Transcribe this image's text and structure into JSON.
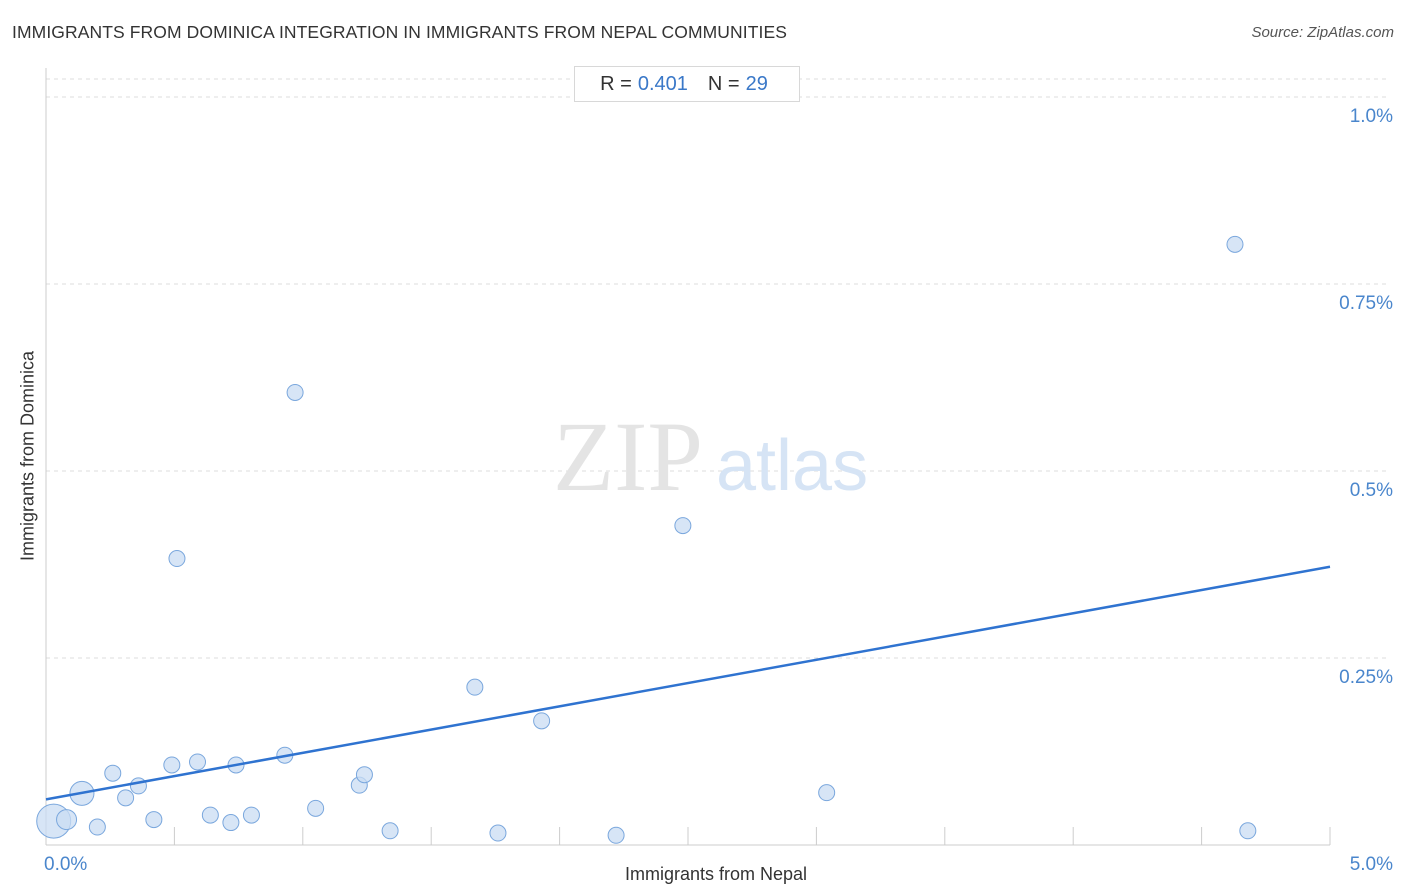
{
  "title": "IMMIGRANTS FROM DOMINICA INTEGRATION IN IMMIGRANTS FROM NEPAL COMMUNITIES",
  "source": "Source: ZipAtlas.com",
  "stats": {
    "r_label": "R =",
    "r_value": "0.401",
    "n_label": "N =",
    "n_value": "29"
  },
  "watermark": {
    "zip": "ZIP",
    "atlas": "atlas"
  },
  "colors": {
    "point_fill": "#c9dcf3",
    "point_stroke": "#7aa7dd",
    "trend": "#2f73d0",
    "tick_text": "#4a86cc"
  },
  "chart_data": {
    "type": "scatter",
    "xlabel": "Immigrants from Nepal",
    "ylabel": "Immigrants from Dominica",
    "xlim": [
      0,
      5
    ],
    "ylim": [
      0,
      1
    ],
    "x_tick_labels": [
      {
        "value": 0,
        "label": "0.0%"
      },
      {
        "value": 5,
        "label": "5.0%"
      }
    ],
    "y_tick_labels": [
      {
        "value": 1.0,
        "label": "1.0%"
      },
      {
        "value": 0.75,
        "label": "0.75%"
      },
      {
        "value": 0.5,
        "label": "0.5%"
      },
      {
        "value": 0.25,
        "label": "0.25%"
      }
    ],
    "grid": "horizontal-dashed",
    "points": [
      {
        "x": 0.03,
        "y": 0.032,
        "big": 3
      },
      {
        "x": 0.08,
        "y": 0.034,
        "big": 1
      },
      {
        "x": 0.14,
        "y": 0.069,
        "big": 2
      },
      {
        "x": 0.2,
        "y": 0.024
      },
      {
        "x": 0.26,
        "y": 0.096
      },
      {
        "x": 0.31,
        "y": 0.063
      },
      {
        "x": 0.36,
        "y": 0.079
      },
      {
        "x": 0.42,
        "y": 0.034
      },
      {
        "x": 0.49,
        "y": 0.107
      },
      {
        "x": 0.51,
        "y": 0.383
      },
      {
        "x": 0.59,
        "y": 0.111
      },
      {
        "x": 0.64,
        "y": 0.04
      },
      {
        "x": 0.72,
        "y": 0.03
      },
      {
        "x": 0.74,
        "y": 0.107
      },
      {
        "x": 0.8,
        "y": 0.04
      },
      {
        "x": 0.93,
        "y": 0.12
      },
      {
        "x": 0.97,
        "y": 0.605
      },
      {
        "x": 1.05,
        "y": 0.049
      },
      {
        "x": 1.22,
        "y": 0.08
      },
      {
        "x": 1.24,
        "y": 0.094
      },
      {
        "x": 1.34,
        "y": 0.019
      },
      {
        "x": 1.67,
        "y": 0.211
      },
      {
        "x": 1.76,
        "y": 0.016
      },
      {
        "x": 1.93,
        "y": 0.166
      },
      {
        "x": 2.22,
        "y": 0.013
      },
      {
        "x": 2.48,
        "y": 0.427
      },
      {
        "x": 3.04,
        "y": 0.07
      },
      {
        "x": 4.63,
        "y": 0.803
      },
      {
        "x": 4.68,
        "y": 0.019
      }
    ],
    "trendline": {
      "x": [
        0,
        5
      ],
      "y": [
        0.061,
        0.372
      ]
    }
  }
}
